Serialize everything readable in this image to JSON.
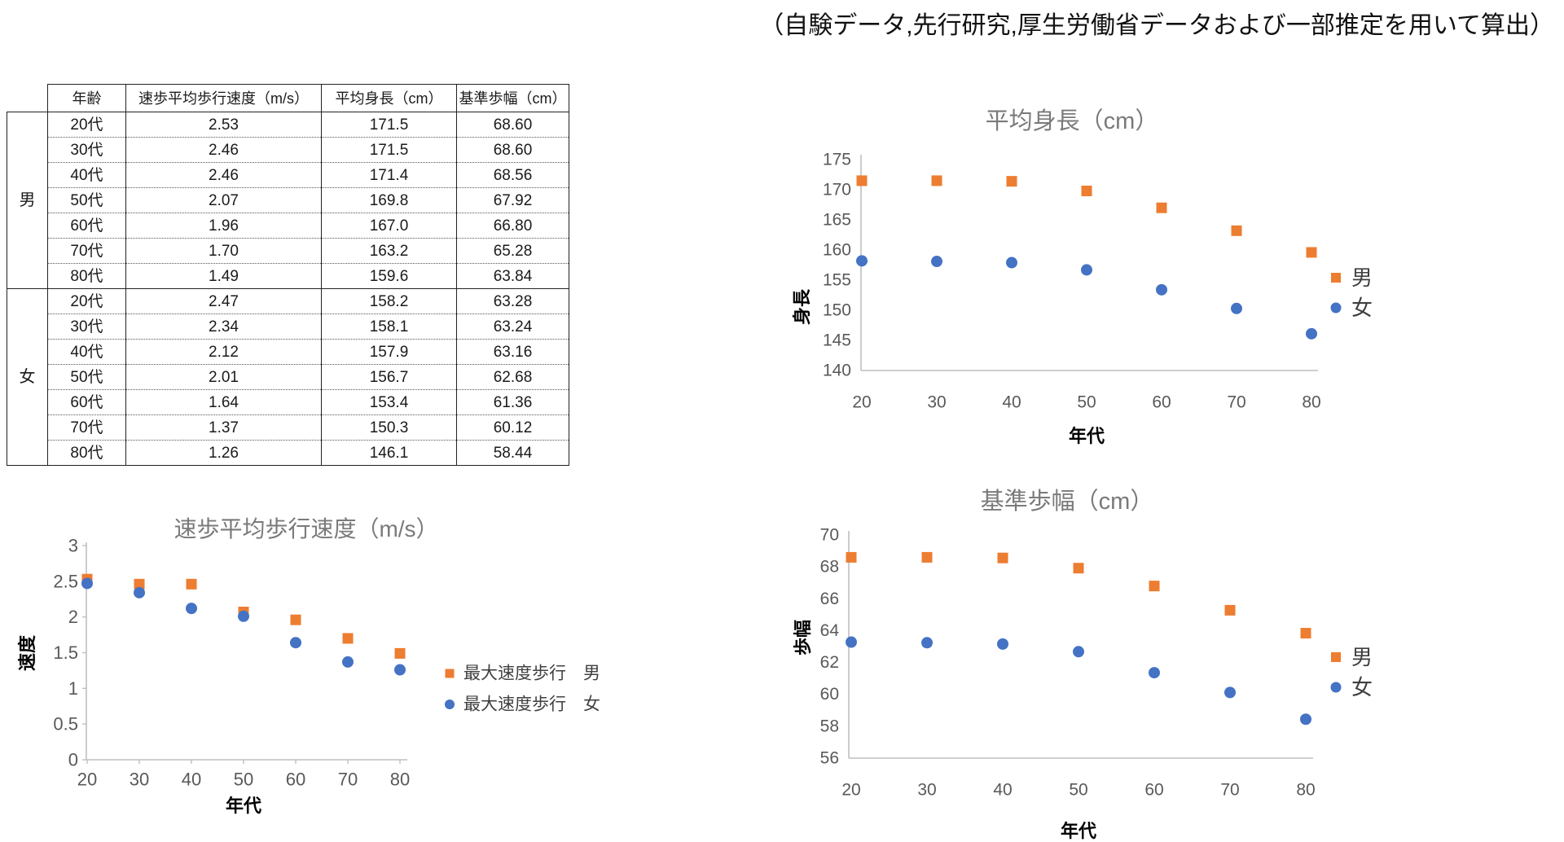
{
  "caption": "（自験データ,先行研究,厚生労働省データおよび一部推定を用いて算出）",
  "table": {
    "headers": [
      "年齢",
      "速歩平均歩行速度（m/s）",
      "平均身長（cm）",
      "基準歩幅（cm）"
    ],
    "groups": [
      {
        "label": "男",
        "rows": [
          [
            "20代",
            "2.53",
            "171.5",
            "68.60"
          ],
          [
            "30代",
            "2.46",
            "171.5",
            "68.60"
          ],
          [
            "40代",
            "2.46",
            "171.4",
            "68.56"
          ],
          [
            "50代",
            "2.07",
            "169.8",
            "67.92"
          ],
          [
            "60代",
            "1.96",
            "167.0",
            "66.80"
          ],
          [
            "70代",
            "1.70",
            "163.2",
            "65.28"
          ],
          [
            "80代",
            "1.49",
            "159.6",
            "63.84"
          ]
        ]
      },
      {
        "label": "女",
        "rows": [
          [
            "20代",
            "2.47",
            "158.2",
            "63.28"
          ],
          [
            "30代",
            "2.34",
            "158.1",
            "63.24"
          ],
          [
            "40代",
            "2.12",
            "157.9",
            "63.16"
          ],
          [
            "50代",
            "2.01",
            "156.7",
            "62.68"
          ],
          [
            "60代",
            "1.64",
            "153.4",
            "61.36"
          ],
          [
            "70代",
            "1.37",
            "150.3",
            "60.12"
          ],
          [
            "80代",
            "1.26",
            "146.1",
            "58.44"
          ]
        ]
      }
    ]
  },
  "colors": {
    "male": "#ED7D31",
    "female": "#4472C4",
    "axis_line": "#BFBFBF",
    "tick_text": "#595959",
    "title_text": "#7A7A7A"
  },
  "chart_data": [
    {
      "type": "scatter",
      "title": "速歩平均歩行速度（m/s）",
      "xlabel": "年代",
      "ylabel": "速度",
      "x": [
        20,
        30,
        40,
        50,
        60,
        70,
        80
      ],
      "xlim": [
        20,
        80
      ],
      "ylim": [
        0,
        3
      ],
      "xticks": [
        "20",
        "30",
        "40",
        "50",
        "60",
        "70",
        "80"
      ],
      "yticks": [
        "0",
        "0.5",
        "1",
        "1.5",
        "2",
        "2.5",
        "3"
      ],
      "grid": false,
      "legend_position": "right",
      "series": [
        {
          "name": "最大速度歩行　男",
          "marker": "square",
          "color": "#ED7D31",
          "values": [
            2.53,
            2.46,
            2.46,
            2.07,
            1.96,
            1.7,
            1.49
          ]
        },
        {
          "name": "最大速度歩行　女",
          "marker": "circle",
          "color": "#4472C4",
          "values": [
            2.47,
            2.34,
            2.12,
            2.01,
            1.64,
            1.37,
            1.26
          ]
        }
      ]
    },
    {
      "type": "scatter",
      "title": "平均身長（cm）",
      "xlabel": "年代",
      "ylabel": "身長",
      "x": [
        20,
        30,
        40,
        50,
        60,
        70,
        80
      ],
      "xlim": [
        20,
        80
      ],
      "ylim": [
        140,
        175
      ],
      "xticks": [
        "20",
        "30",
        "40",
        "50",
        "60",
        "70",
        "80"
      ],
      "yticks": [
        "140",
        "145",
        "150",
        "155",
        "160",
        "165",
        "170",
        "175"
      ],
      "grid": false,
      "legend_position": "right",
      "series": [
        {
          "name": "男",
          "marker": "square",
          "color": "#ED7D31",
          "values": [
            171.5,
            171.5,
            171.4,
            169.8,
            167.0,
            163.2,
            159.6
          ]
        },
        {
          "name": "女",
          "marker": "circle",
          "color": "#4472C4",
          "values": [
            158.2,
            158.1,
            157.9,
            156.7,
            153.4,
            150.3,
            146.1
          ]
        }
      ]
    },
    {
      "type": "scatter",
      "title": "基準歩幅（cm）",
      "xlabel": "年代",
      "ylabel": "歩幅",
      "x": [
        20,
        30,
        40,
        50,
        60,
        70,
        80
      ],
      "xlim": [
        20,
        80
      ],
      "ylim": [
        56,
        70
      ],
      "xticks": [
        "20",
        "30",
        "40",
        "50",
        "60",
        "70",
        "80"
      ],
      "yticks": [
        "56",
        "58",
        "60",
        "62",
        "64",
        "66",
        "68",
        "70"
      ],
      "grid": false,
      "legend_position": "right",
      "series": [
        {
          "name": "男",
          "marker": "square",
          "color": "#ED7D31",
          "values": [
            68.6,
            68.6,
            68.56,
            67.92,
            66.8,
            65.28,
            63.84
          ]
        },
        {
          "name": "女",
          "marker": "circle",
          "color": "#4472C4",
          "values": [
            63.28,
            63.24,
            63.16,
            62.68,
            61.36,
            60.12,
            58.44
          ]
        }
      ]
    }
  ]
}
